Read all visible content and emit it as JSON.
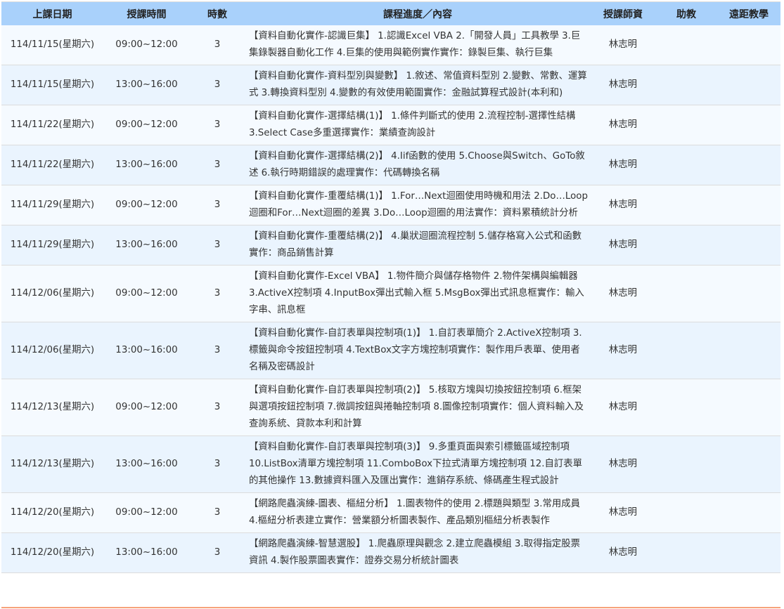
{
  "table": {
    "headers": [
      "上課日期",
      "授課時間",
      "時數",
      "課程進度／內容",
      "授課師資",
      "助教",
      "遠距教學"
    ],
    "rows": [
      {
        "date": "114/11/15(星期六)",
        "time": "09:00~12:00",
        "hours": "3",
        "content": "【資料自動化實作-認識巨集】 1.認識Excel VBA 2.「開發人員」工具教學 3.巨集錄製器自動化工作 4.巨集的使用與範例實作實作：錄製巨集、執行巨集",
        "teacher": "林志明",
        "assistant": "",
        "remote": ""
      },
      {
        "date": "114/11/15(星期六)",
        "time": "13:00~16:00",
        "hours": "3",
        "content": "【資料自動化實作-資料型別與變數】 1.敘述、常值資料型別 2.變數、常數、運算式 3.轉換資料型別 4.變數的有效使用範圍實作：金融試算程式設計(本利和)",
        "teacher": "林志明",
        "assistant": "",
        "remote": ""
      },
      {
        "date": "114/11/22(星期六)",
        "time": "09:00~12:00",
        "hours": "3",
        "content": "【資料自動化實作-選擇結構(1)】 1.條件判斷式的使用 2.流程控制-選擇性結構 3.Select Case多重選擇實作：業績查詢設計",
        "teacher": "林志明",
        "assistant": "",
        "remote": ""
      },
      {
        "date": "114/11/22(星期六)",
        "time": "13:00~16:00",
        "hours": "3",
        "content": "【資料自動化實作-選擇結構(2)】 4.Iif函數的使用 5.Choose與Switch、GoTo敘述 6.執行時期錯誤的處理實作：代碼轉換名稱",
        "teacher": "林志明",
        "assistant": "",
        "remote": ""
      },
      {
        "date": "114/11/29(星期六)",
        "time": "09:00~12:00",
        "hours": "3",
        "content": "【資料自動化實作-重覆結構(1)】 1.For…Next迴圈使用時機和用法 2.Do…Loop迴圈和For…Next迴圈的差異 3.Do…Loop迴圈的用法實作：資料累積統計分析",
        "teacher": "林志明",
        "assistant": "",
        "remote": ""
      },
      {
        "date": "114/11/29(星期六)",
        "time": "13:00~16:00",
        "hours": "3",
        "content": "【資料自動化實作-重覆結構(2)】 4.巢狀迴圈流程控制 5.儲存格寫入公式和函數實作：商品銷售計算",
        "teacher": "林志明",
        "assistant": "",
        "remote": ""
      },
      {
        "date": "114/12/06(星期六)",
        "time": "09:00~12:00",
        "hours": "3",
        "content": "【資料自動化實作-Excel VBA】 1.物件簡介與儲存格物件 2.物件架構與編輯器 3.ActiveX控制項 4.InputBox彈出式輸入框 5.MsgBox彈出式訊息框實作：輸入字串、訊息框",
        "teacher": "林志明",
        "assistant": "",
        "remote": ""
      },
      {
        "date": "114/12/06(星期六)",
        "time": "13:00~16:00",
        "hours": "3",
        "content": "【資料自動化實作-自訂表單與控制項(1)】 1.自訂表單簡介 2.ActiveX控制項 3.標籤與命令按鈕控制項 4.TextBox文字方塊控制項實作：製作用戶表單、使用者名稱及密碼設計",
        "teacher": "林志明",
        "assistant": "",
        "remote": ""
      },
      {
        "date": "114/12/13(星期六)",
        "time": "09:00~12:00",
        "hours": "3",
        "content": "【資料自動化實作-自訂表單與控制項(2)】 5.核取方塊與切換按鈕控制項 6.框架與選項按鈕控制項 7.微調按鈕與捲軸控制項 8.圖像控制項實作：個人資料輸入及查詢系統、貸款本利和計算",
        "teacher": "林志明",
        "assistant": "",
        "remote": ""
      },
      {
        "date": "114/12/13(星期六)",
        "time": "13:00~16:00",
        "hours": "3",
        "content": "【資料自動化實作-自訂表單與控制項(3)】 9.多重頁面與索引標籤區域控制項 10.ListBox清單方塊控制項 11.ComboBox下拉式清單方塊控制項 12.自訂表單的其他操作 13.數據資料匯入及匯出實作：進銷存系統、條碼產生程式設計",
        "teacher": "林志明",
        "assistant": "",
        "remote": ""
      },
      {
        "date": "114/12/20(星期六)",
        "time": "09:00~12:00",
        "hours": "3",
        "content": "【網路爬蟲演練-圖表、樞紐分析】 1.圖表物件的使用 2.標題與類型 3.常用成員 4.樞紐分析表建立實作：營業額分析圖表製作、產品類別樞紐分析表製作",
        "teacher": "林志明",
        "assistant": "",
        "remote": ""
      },
      {
        "date": "114/12/20(星期六)",
        "time": "13:00~16:00",
        "hours": "3",
        "content": "【網路爬蟲演練-智慧選股】 1.爬蟲原理與觀念 2.建立爬蟲模組 3.取得指定股票資訊 4.製作股票圖表實作：證券交易分析統計圖表",
        "teacher": "林志明",
        "assistant": "",
        "remote": ""
      }
    ]
  },
  "colors": {
    "header_bg": "#a9d1fb",
    "row_odd": "#f5faff",
    "row_even": "#eaf4fe",
    "bottom_accent": "#f6a27a"
  }
}
